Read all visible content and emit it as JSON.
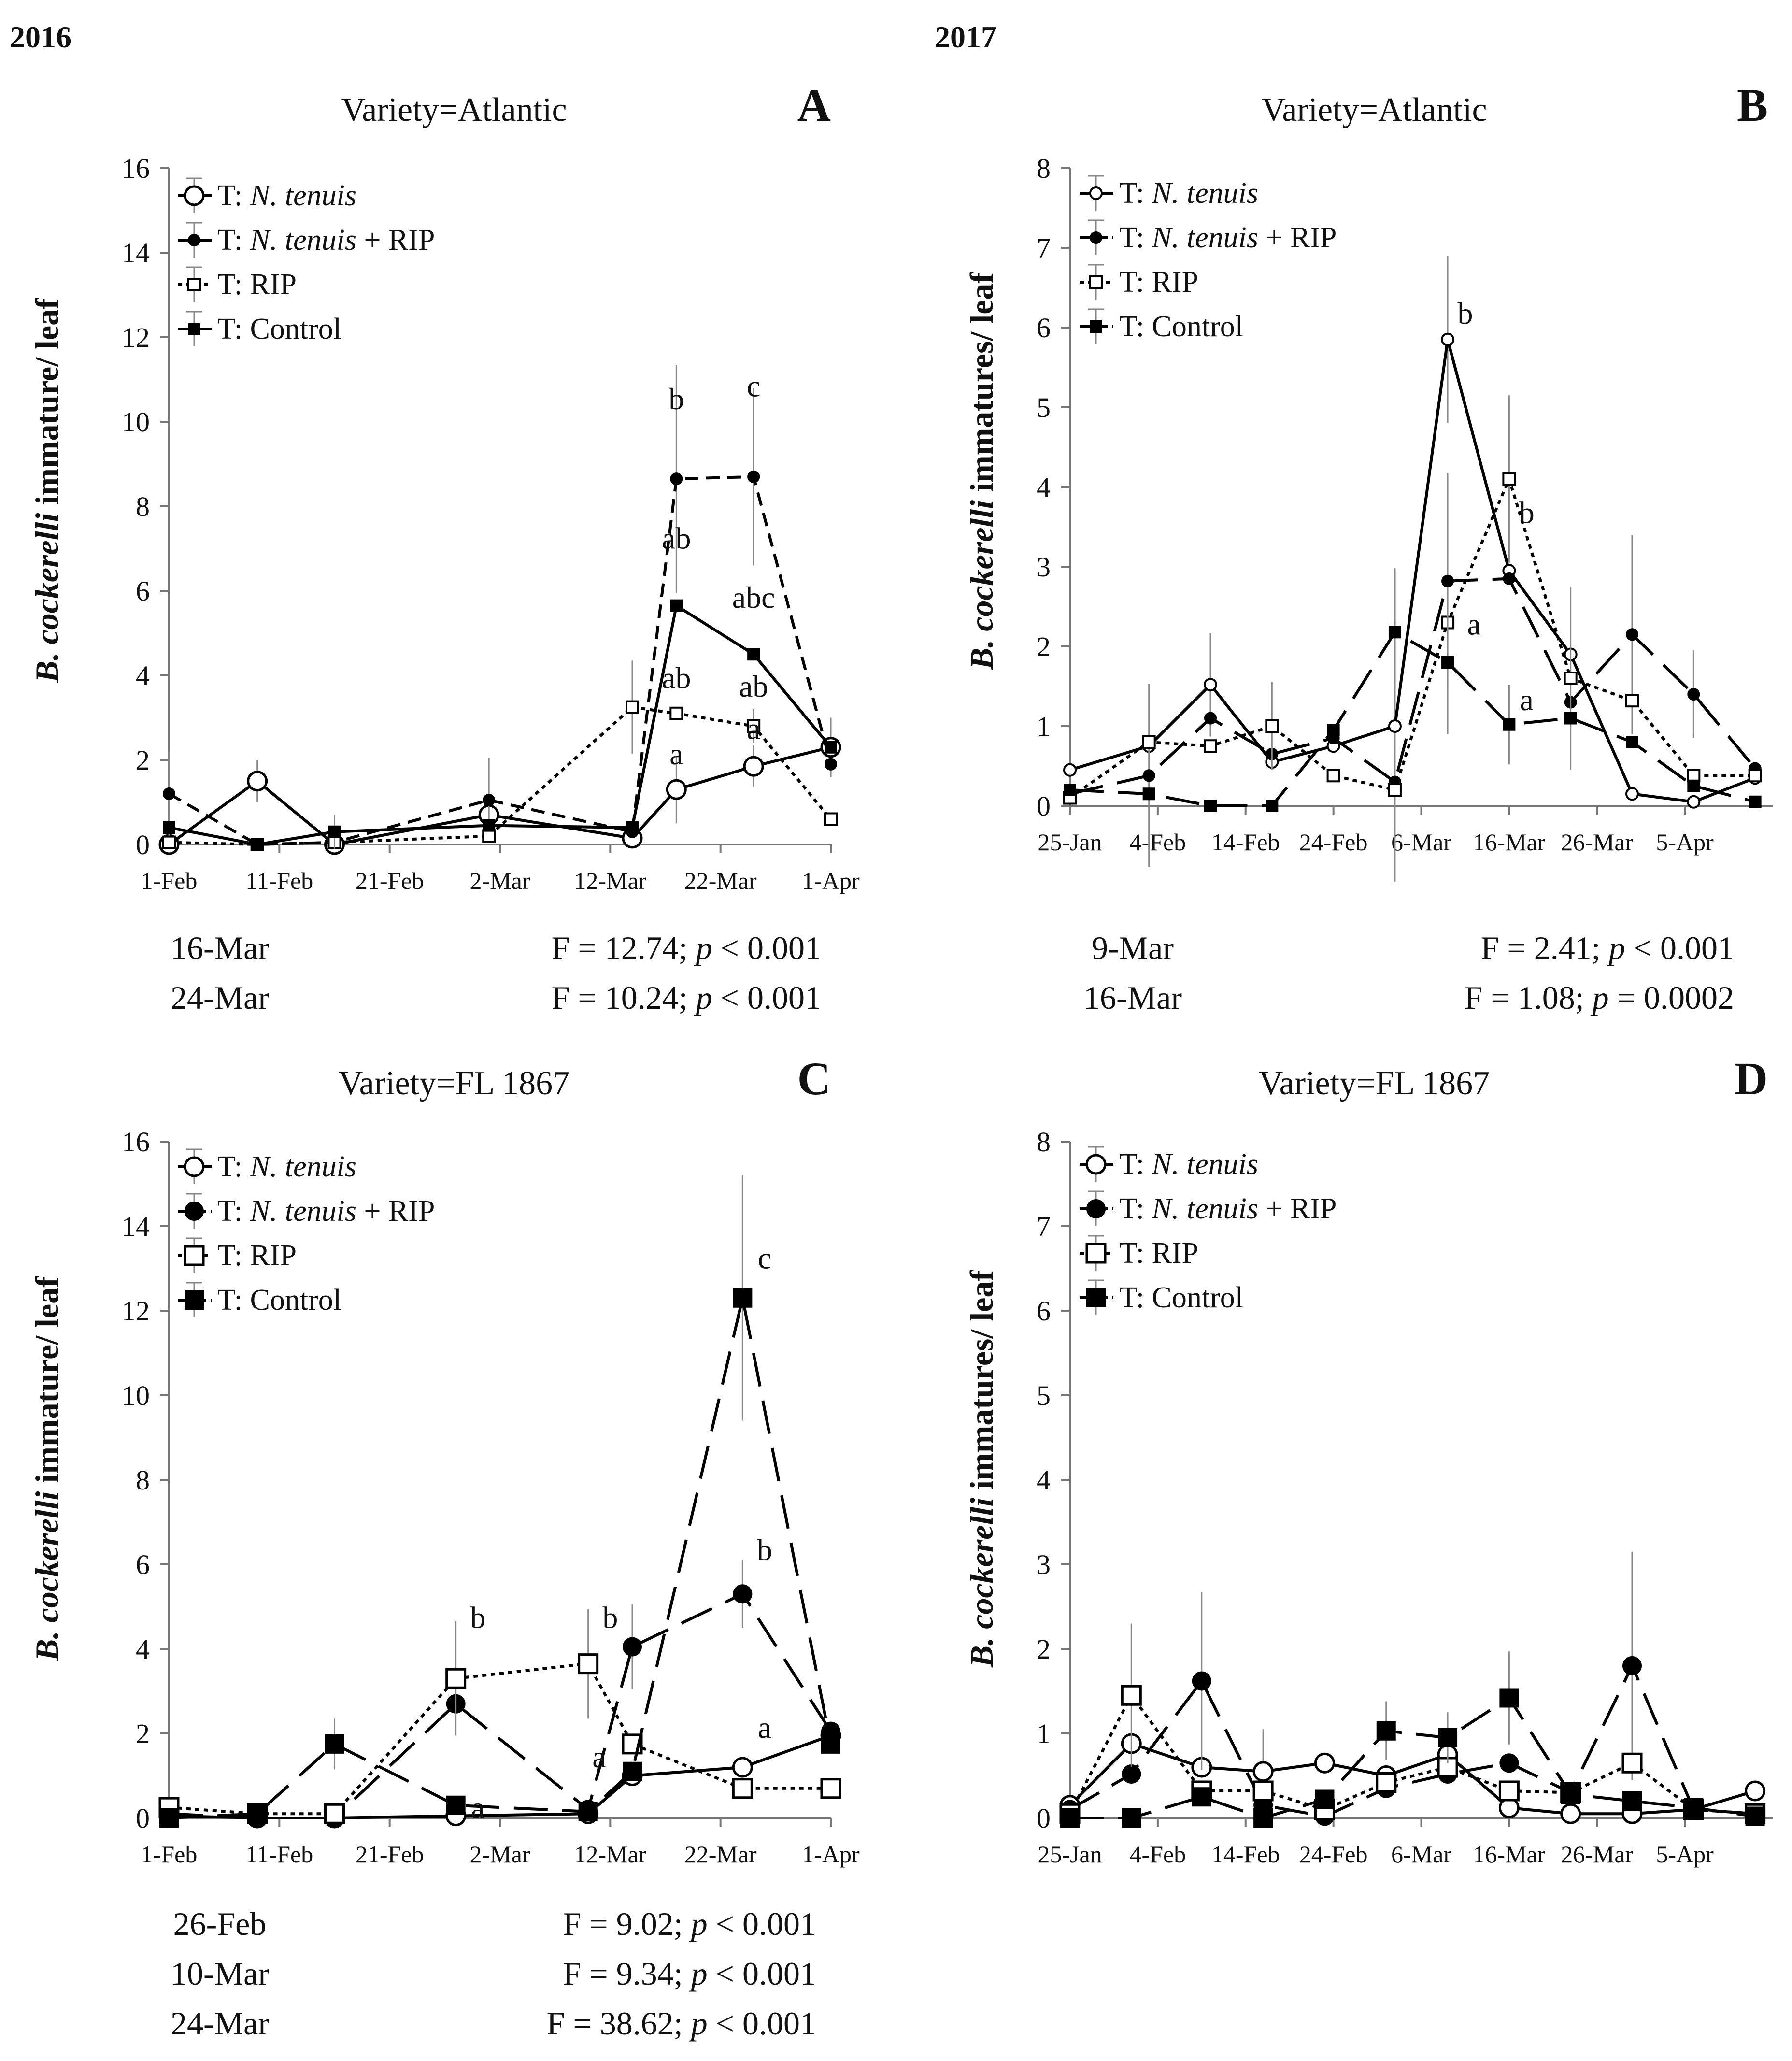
{
  "figure": {
    "year_left": "2016",
    "year_right": "2017"
  },
  "legend_labels": [
    {
      "prefix": "T: ",
      "italic": "N. tenuis",
      "suffix": ""
    },
    {
      "prefix": "T: ",
      "italic": "N. tenuis",
      "suffix": " + RIP"
    },
    {
      "prefix": "T: ",
      "italic": "",
      "suffix": "RIP"
    },
    {
      "prefix": "T: ",
      "italic": "",
      "suffix": "Control"
    }
  ],
  "chart_data": [
    {
      "id": "A",
      "type": "line",
      "letter": "A",
      "title": "Variety=Atlantic",
      "ylabel_italic": "B. cockerelli",
      "ylabel_rest": " immature/ leaf",
      "ylim": [
        0,
        16
      ],
      "yticks": [
        0,
        2,
        4,
        6,
        8,
        10,
        12,
        14,
        16
      ],
      "xlim": [
        0,
        60
      ],
      "xticks": [
        {
          "x": 0,
          "label": "1-Feb"
        },
        {
          "x": 10,
          "label": "11-Feb"
        },
        {
          "x": 20,
          "label": "21-Feb"
        },
        {
          "x": 30,
          "label": "2-Mar"
        },
        {
          "x": 40,
          "label": "12-Mar"
        },
        {
          "x": 50,
          "label": "22-Mar"
        },
        {
          "x": 60,
          "label": "1-Apr"
        }
      ],
      "series": [
        {
          "name": "T: N. tenuis",
          "marker": "circle-open",
          "dash": "solid",
          "x": [
            0,
            8,
            15,
            29,
            42,
            46,
            53,
            60
          ],
          "y": [
            0,
            1.5,
            0,
            0.7,
            0.15,
            1.3,
            1.85,
            2.3
          ],
          "err": [
            0,
            0.5,
            0,
            0,
            0,
            0.8,
            0.5,
            0.7
          ]
        },
        {
          "name": "T: N. tenuis + RIP",
          "marker": "circle-filled-small",
          "dash": "dashed",
          "x": [
            0,
            8,
            15,
            29,
            42,
            46,
            53,
            60
          ],
          "y": [
            1.2,
            0,
            0.05,
            1.05,
            0.3,
            8.65,
            8.7,
            1.9
          ],
          "err": [
            1.0,
            0,
            0,
            1.0,
            0,
            2.7,
            2.1,
            0
          ]
        },
        {
          "name": "T: RIP",
          "marker": "square-open-small",
          "dash": "dotted",
          "x": [
            0,
            8,
            15,
            29,
            42,
            46,
            53,
            60
          ],
          "y": [
            0.05,
            0,
            0.05,
            0.2,
            3.25,
            3.1,
            2.8,
            0.6
          ],
          "err": [
            0,
            0,
            0,
            0,
            1.1,
            0,
            0.4,
            0
          ]
        },
        {
          "name": "T: Control",
          "marker": "square-filled-small",
          "dash": "solid",
          "x": [
            0,
            8,
            15,
            29,
            42,
            46,
            53,
            60
          ],
          "y": [
            0.4,
            0,
            0.3,
            0.45,
            0.4,
            5.65,
            4.5,
            2.3
          ],
          "err": [
            0,
            0,
            0.4,
            0,
            0,
            0,
            0,
            0
          ]
        }
      ],
      "annotations": [
        {
          "x": 46,
          "y": 10.3,
          "text": "b"
        },
        {
          "x": 53,
          "y": 10.6,
          "text": "c"
        },
        {
          "x": 46,
          "y": 7.0,
          "text": "ab"
        },
        {
          "x": 53,
          "y": 5.6,
          "text": "abc"
        },
        {
          "x": 46,
          "y": 3.7,
          "text": "ab"
        },
        {
          "x": 53,
          "y": 3.5,
          "text": "ab"
        },
        {
          "x": 53,
          "y": 2.5,
          "text": "a"
        },
        {
          "x": 46,
          "y": 1.9,
          "text": "a"
        }
      ],
      "stats": [
        {
          "date": "16-Mar",
          "F": "F = 12.74; ",
          "p_italic": "p",
          "p_rest": " < 0.001"
        },
        {
          "date": "24-Mar",
          "F": "F = 10.24; ",
          "p_italic": "p",
          "p_rest": " < 0.001"
        }
      ]
    },
    {
      "id": "B",
      "type": "line",
      "letter": "B",
      "title": "Variety=Atlantic",
      "ylabel_italic": "B. cockerelli",
      "ylabel_rest": " immatures/ leaf",
      "ylim": [
        0,
        8
      ],
      "yticks": [
        0,
        1,
        2,
        3,
        4,
        5,
        6,
        7,
        8
      ],
      "xlim": [
        0,
        80
      ],
      "xticks": [
        {
          "x": 0,
          "label": "25-Jan"
        },
        {
          "x": 10,
          "label": "4-Feb"
        },
        {
          "x": 20,
          "label": "14-Feb"
        },
        {
          "x": 30,
          "label": "24-Feb"
        },
        {
          "x": 40,
          "label": "6-Mar"
        },
        {
          "x": 50,
          "label": "16-Mar"
        },
        {
          "x": 60,
          "label": "26-Mar"
        },
        {
          "x": 70,
          "label": "5-Apr"
        }
      ],
      "series": [
        {
          "name": "T: N. tenuis",
          "marker": "circle-open-small",
          "dash": "solid",
          "x": [
            0,
            9,
            16,
            23,
            30,
            37,
            43,
            50,
            57,
            64,
            71,
            78
          ],
          "y": [
            0.45,
            0.75,
            1.52,
            0.55,
            0.75,
            1.0,
            5.85,
            2.95,
            1.9,
            0.15,
            0.05,
            0.35
          ],
          "err": [
            0,
            0,
            0.65,
            0,
            0,
            1.95,
            1.05,
            0,
            0,
            0,
            0,
            0
          ]
        },
        {
          "name": "T: N. tenuis + RIP",
          "marker": "circle-filled-small",
          "dash": "longdash",
          "x": [
            0,
            9,
            16,
            23,
            30,
            37,
            43,
            50,
            57,
            64,
            71,
            78
          ],
          "y": [
            0.15,
            0.38,
            1.1,
            0.65,
            0.85,
            0.3,
            2.82,
            2.85,
            1.3,
            2.15,
            1.4,
            0.47
          ],
          "err": [
            0,
            1.15,
            0,
            0,
            0,
            0,
            1.35,
            0,
            0,
            1.25,
            0.55,
            0
          ]
        },
        {
          "name": "T: RIP",
          "marker": "square-open-small",
          "dash": "dotted",
          "x": [
            0,
            9,
            16,
            23,
            30,
            37,
            43,
            50,
            57,
            64,
            71,
            78
          ],
          "y": [
            0.1,
            0.8,
            0.75,
            1.0,
            0.38,
            0.2,
            2.3,
            4.1,
            1.6,
            1.32,
            0.38,
            0.38
          ],
          "err": [
            0,
            0,
            0,
            0.55,
            0,
            0,
            0,
            1.05,
            1.15,
            0,
            0,
            0
          ]
        },
        {
          "name": "T: Control",
          "marker": "square-filled-small",
          "dash": "longdash",
          "x": [
            0,
            9,
            16,
            23,
            30,
            37,
            43,
            50,
            57,
            64,
            71,
            78
          ],
          "y": [
            0.2,
            0.15,
            0,
            0,
            0.95,
            2.18,
            1.8,
            1.02,
            1.1,
            0.8,
            0.25,
            0.05
          ],
          "err": [
            0,
            0,
            0,
            0,
            0,
            0.8,
            0.9,
            0.5,
            0,
            0,
            0,
            0
          ]
        }
      ],
      "annotations": [
        {
          "x": 45,
          "y": 6.05,
          "text": "b"
        },
        {
          "x": 52,
          "y": 3.55,
          "text": "b"
        },
        {
          "x": 46,
          "y": 2.15,
          "text": "a"
        },
        {
          "x": 52,
          "y": 1.2,
          "text": "a"
        }
      ],
      "stats": [
        {
          "date": "9-Mar",
          "F": "F = 2.41; ",
          "p_italic": "p",
          "p_rest": " < 0.001"
        },
        {
          "date": "16-Mar",
          "F": "F = 1.08; ",
          "p_italic": "p",
          "p_rest": " = 0.0002"
        }
      ]
    },
    {
      "id": "C",
      "type": "line",
      "letter": "C",
      "title": "Variety=FL 1867",
      "ylabel_italic": "B. cockerelli",
      "ylabel_rest": " immature/ leaf",
      "ylim": [
        0,
        16
      ],
      "yticks": [
        0,
        2,
        4,
        6,
        8,
        10,
        12,
        14,
        16
      ],
      "xlim": [
        0,
        60
      ],
      "xticks": [
        {
          "x": 0,
          "label": "1-Feb"
        },
        {
          "x": 10,
          "label": "11-Feb"
        },
        {
          "x": 20,
          "label": "21-Feb"
        },
        {
          "x": 30,
          "label": "2-Mar"
        },
        {
          "x": 40,
          "label": "12-Mar"
        },
        {
          "x": 50,
          "label": "22-Mar"
        },
        {
          "x": 60,
          "label": "1-Apr"
        }
      ],
      "series": [
        {
          "name": "T: N. tenuis",
          "marker": "circle-open",
          "dash": "solid",
          "x": [
            0,
            8,
            15,
            26,
            38,
            42,
            52,
            60
          ],
          "y": [
            0.05,
            0,
            0,
            0.05,
            0.1,
            1.0,
            1.2,
            1.95
          ],
          "err": [
            0,
            0,
            0,
            0,
            0,
            0,
            0,
            0
          ]
        },
        {
          "name": "T: N. tenuis + RIP",
          "marker": "circle-filled",
          "dash": "longdash",
          "x": [
            0,
            8,
            15,
            26,
            38,
            42,
            52,
            60
          ],
          "y": [
            0.1,
            0,
            0,
            2.7,
            0.2,
            4.05,
            5.3,
            2.05
          ],
          "err": [
            0,
            0,
            0,
            0,
            0,
            1.0,
            0.8,
            0
          ]
        },
        {
          "name": "T: RIP",
          "marker": "square-open",
          "dash": "dotted",
          "x": [
            0,
            8,
            15,
            26,
            38,
            42,
            52,
            60
          ],
          "y": [
            0.25,
            0.1,
            0.1,
            3.3,
            3.65,
            1.75,
            0.7,
            0.7
          ],
          "err": [
            0,
            0,
            0,
            1.35,
            1.3,
            0,
            0,
            0
          ]
        },
        {
          "name": "T: Control",
          "marker": "square-filled",
          "dash": "longdash",
          "x": [
            0,
            8,
            15,
            26,
            38,
            42,
            52,
            60
          ],
          "y": [
            0,
            0.1,
            1.75,
            0.3,
            0.15,
            1.1,
            12.3,
            1.75
          ],
          "err": [
            0,
            0,
            0.6,
            0,
            0,
            0,
            2.9,
            0
          ]
        }
      ],
      "annotations": [
        {
          "x": 28,
          "y": 4.5,
          "text": "b"
        },
        {
          "x": 40,
          "y": 4.5,
          "text": "b"
        },
        {
          "x": 54,
          "y": 13.0,
          "text": "c"
        },
        {
          "x": 54,
          "y": 6.1,
          "text": "b"
        },
        {
          "x": 54,
          "y": 1.9,
          "text": "a"
        },
        {
          "x": 39,
          "y": 1.2,
          "text": "a"
        },
        {
          "x": 28,
          "y": 0.0,
          "text": "a"
        }
      ],
      "stats": [
        {
          "date": "26-Feb",
          "F": "F = 9.02; ",
          "p_italic": "p",
          "p_rest": " < 0.001"
        },
        {
          "date": "10-Mar",
          "F": "F = 9.34; ",
          "p_italic": "p",
          "p_rest": " < 0.001"
        },
        {
          "date": "24-Mar",
          "F": "F = 38.62; ",
          "p_italic": "p",
          "p_rest": " < 0.001"
        }
      ]
    },
    {
      "id": "D",
      "type": "line",
      "letter": "D",
      "title": "Variety=FL 1867",
      "ylabel_italic": "B. cockerelli",
      "ylabel_rest": " immatures/ leaf",
      "ylim": [
        0,
        8
      ],
      "yticks": [
        0,
        1,
        2,
        3,
        4,
        5,
        6,
        7,
        8
      ],
      "xlim": [
        0,
        80
      ],
      "xticks": [
        {
          "x": 0,
          "label": "25-Jan"
        },
        {
          "x": 10,
          "label": "4-Feb"
        },
        {
          "x": 20,
          "label": "14-Feb"
        },
        {
          "x": 30,
          "label": "24-Feb"
        },
        {
          "x": 40,
          "label": "6-Mar"
        },
        {
          "x": 50,
          "label": "16-Mar"
        },
        {
          "x": 60,
          "label": "26-Mar"
        },
        {
          "x": 70,
          "label": "5-Apr"
        }
      ],
      "series": [
        {
          "name": "T: N. tenuis",
          "marker": "circle-open",
          "dash": "solid",
          "x": [
            0,
            7,
            15,
            22,
            29,
            36,
            43,
            50,
            57,
            64,
            71,
            78
          ],
          "y": [
            0.15,
            0.88,
            0.6,
            0.55,
            0.65,
            0.5,
            0.75,
            0.12,
            0.05,
            0.05,
            0.1,
            0.32
          ],
          "err": [
            0,
            0,
            0,
            0.5,
            0,
            0,
            0,
            0,
            0,
            0,
            0,
            0
          ]
        },
        {
          "name": "T: N. tenuis + RIP",
          "marker": "circle-filled",
          "dash": "longdash",
          "x": [
            0,
            7,
            15,
            22,
            29,
            36,
            43,
            50,
            57,
            64,
            71,
            78
          ],
          "y": [
            0.1,
            0.52,
            1.62,
            0.15,
            0.02,
            0.35,
            0.52,
            0.65,
            0.3,
            1.8,
            0.1,
            0.05
          ],
          "err": [
            0,
            0,
            1.05,
            0,
            0,
            0,
            0,
            0,
            0,
            1.35,
            0,
            0
          ]
        },
        {
          "name": "T: RIP",
          "marker": "square-open",
          "dash": "dotted",
          "x": [
            0,
            7,
            15,
            22,
            29,
            36,
            43,
            50,
            57,
            64,
            71,
            78
          ],
          "y": [
            0.05,
            1.45,
            0.32,
            0.32,
            0.1,
            0.42,
            0.6,
            0.32,
            0.3,
            0.65,
            0.1,
            0.05
          ],
          "err": [
            0,
            0.85,
            0,
            0,
            0,
            0,
            0,
            0,
            0,
            0,
            0,
            0
          ]
        },
        {
          "name": "T: Control",
          "marker": "square-filled",
          "dash": "longdash",
          "x": [
            0,
            7,
            15,
            22,
            29,
            36,
            43,
            50,
            57,
            64,
            71,
            78
          ],
          "y": [
            0,
            0,
            0.25,
            0,
            0.22,
            1.03,
            0.95,
            1.42,
            0.28,
            0.2,
            0.12,
            0.02
          ],
          "err": [
            0,
            0,
            0,
            0,
            0,
            0.35,
            0.3,
            0.55,
            0,
            0,
            0,
            0
          ]
        }
      ],
      "annotations": [],
      "stats": []
    }
  ]
}
